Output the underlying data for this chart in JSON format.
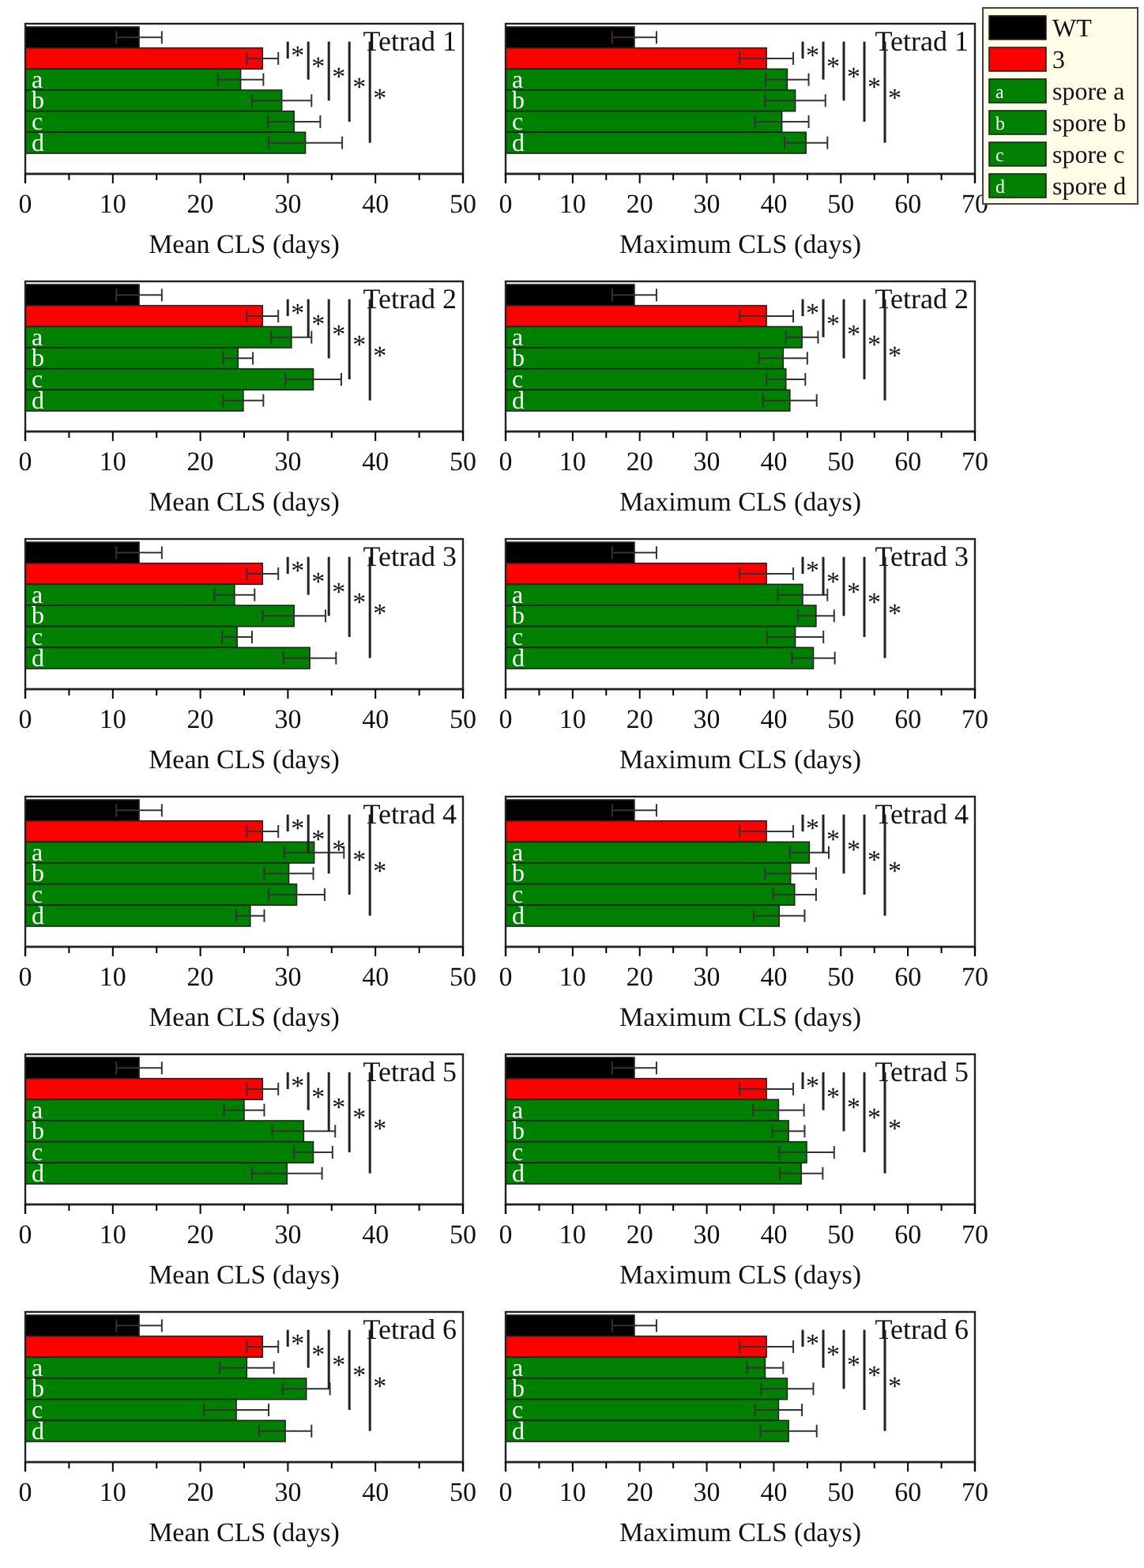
{
  "chart_data": [
    {
      "type": "bar",
      "orientation": "horizontal",
      "title": "Tetrad 1",
      "xlabel": "Mean CLS (days)",
      "categories": [
        null,
        null,
        "a",
        "b",
        "c",
        "d"
      ],
      "xlim": [
        0,
        50
      ],
      "xticks": [
        0,
        {
          "value": 5,
          "label": null
        },
        10,
        {
          "value": 15,
          "label": null
        },
        20,
        {
          "value": 25,
          "label": null
        },
        30,
        {
          "value": 35,
          "label": null
        },
        40,
        {
          "value": 45,
          "label": null
        },
        50
      ],
      "annotations": [
        "*",
        "*",
        "*",
        "*",
        "*"
      ],
      "series": [
        {
          "color": "#000000",
          "values": [
            13.0,
            null,
            null,
            null,
            null,
            null
          ],
          "errors": [
            2.6,
            null,
            null,
            null,
            null,
            null
          ]
        },
        {
          "color": "#ff0000",
          "values": [
            null,
            27.1,
            null,
            null,
            null,
            null
          ],
          "errors": [
            null,
            1.8,
            null,
            null,
            null,
            null
          ]
        },
        {
          "color": "#008000",
          "values": [
            null,
            null,
            24.6,
            null,
            null,
            null
          ],
          "errors": [
            null,
            null,
            2.6,
            null,
            null,
            null
          ]
        },
        {
          "color": "#008000",
          "values": [
            null,
            null,
            null,
            29.3,
            null,
            null
          ],
          "errors": [
            null,
            null,
            null,
            3.4,
            null,
            null
          ]
        },
        {
          "color": "#008000",
          "values": [
            null,
            null,
            null,
            null,
            30.7,
            null
          ],
          "errors": [
            null,
            null,
            null,
            null,
            3.0,
            null
          ]
        },
        {
          "color": "#008000",
          "values": [
            null,
            null,
            null,
            null,
            null,
            32.0
          ],
          "errors": [
            null,
            null,
            null,
            null,
            null,
            4.2
          ]
        }
      ]
    },
    {
      "type": "bar",
      "orientation": "horizontal",
      "title": "Tetrad 1",
      "xlabel": "Maximum CLS (days)",
      "categories": [
        null,
        null,
        "a",
        "b",
        "c",
        "d"
      ],
      "xlim": [
        0,
        70
      ],
      "xticks": [
        0,
        {
          "value": 5,
          "label": null
        },
        10,
        {
          "value": 15,
          "label": null
        },
        20,
        {
          "value": 25,
          "label": null
        },
        30,
        {
          "value": 35,
          "label": null
        },
        40,
        {
          "value": 45,
          "label": null
        },
        50,
        {
          "value": 55,
          "label": null
        },
        60,
        {
          "value": 65,
          "label": null
        },
        70
      ],
      "annotations": [
        "*",
        "*",
        "*",
        "*",
        "*"
      ],
      "legend": "right",
      "series": [
        {
          "name": "WT",
          "color": "#000000",
          "values": [
            19.2,
            null,
            null,
            null,
            null,
            null
          ],
          "errors": [
            3.3,
            null,
            null,
            null,
            null,
            null
          ]
        },
        {
          "name": "3",
          "color": "#ff0000",
          "values": [
            null,
            38.9,
            null,
            null,
            null,
            null
          ],
          "errors": [
            null,
            4.0,
            null,
            null,
            null,
            null
          ]
        },
        {
          "name": "spore a",
          "color": "#008000",
          "values": [
            null,
            null,
            42.0,
            null,
            null,
            null
          ],
          "errors": [
            null,
            null,
            3.2,
            null,
            null,
            null
          ]
        },
        {
          "name": "spore b",
          "color": "#008000",
          "values": [
            null,
            null,
            null,
            43.2,
            null,
            null
          ],
          "errors": [
            null,
            null,
            null,
            4.5,
            null,
            null
          ]
        },
        {
          "name": "spore c",
          "color": "#008000",
          "values": [
            null,
            null,
            null,
            null,
            41.2,
            null
          ],
          "errors": [
            null,
            null,
            null,
            null,
            4.0,
            null
          ]
        },
        {
          "name": "spore d",
          "color": "#008000",
          "values": [
            null,
            null,
            null,
            null,
            null,
            44.8
          ],
          "errors": [
            null,
            null,
            null,
            null,
            null,
            3.2
          ]
        }
      ]
    },
    {
      "type": "bar",
      "orientation": "horizontal",
      "title": "Tetrad 2",
      "xlabel": "Mean CLS (days)",
      "categories": [
        null,
        null,
        "a",
        "b",
        "c",
        "d"
      ],
      "xlim": [
        0,
        50
      ],
      "xticks": [
        0,
        {
          "value": 5,
          "label": null
        },
        10,
        {
          "value": 15,
          "label": null
        },
        20,
        {
          "value": 25,
          "label": null
        },
        30,
        {
          "value": 35,
          "label": null
        },
        40,
        {
          "value": 45,
          "label": null
        },
        50
      ],
      "annotations": [
        "*",
        "*",
        "*",
        "*",
        "*"
      ],
      "series": [
        {
          "color": "#000000",
          "values": [
            13.0,
            null,
            null,
            null,
            null,
            null
          ],
          "errors": [
            2.6,
            null,
            null,
            null,
            null,
            null
          ]
        },
        {
          "color": "#ff0000",
          "values": [
            null,
            27.1,
            null,
            null,
            null,
            null
          ],
          "errors": [
            null,
            1.8,
            null,
            null,
            null,
            null
          ]
        },
        {
          "color": "#008000",
          "values": [
            null,
            null,
            30.4,
            null,
            null,
            null
          ],
          "errors": [
            null,
            null,
            2.3,
            null,
            null,
            null
          ]
        },
        {
          "color": "#008000",
          "values": [
            null,
            null,
            null,
            24.3,
            null,
            null
          ],
          "errors": [
            null,
            null,
            null,
            1.7,
            null,
            null
          ]
        },
        {
          "color": "#008000",
          "values": [
            null,
            null,
            null,
            null,
            32.9,
            null
          ],
          "errors": [
            null,
            null,
            null,
            null,
            3.2,
            null
          ]
        },
        {
          "color": "#008000",
          "values": [
            null,
            null,
            null,
            null,
            null,
            24.9
          ],
          "errors": [
            null,
            null,
            null,
            null,
            null,
            2.3
          ]
        }
      ]
    },
    {
      "type": "bar",
      "orientation": "horizontal",
      "title": "Tetrad 2",
      "xlabel": "Maximum CLS (days)",
      "categories": [
        null,
        null,
        "a",
        "b",
        "c",
        "d"
      ],
      "xlim": [
        0,
        70
      ],
      "xticks": [
        0,
        {
          "value": 5,
          "label": null
        },
        10,
        {
          "value": 15,
          "label": null
        },
        20,
        {
          "value": 25,
          "label": null
        },
        30,
        {
          "value": 35,
          "label": null
        },
        40,
        {
          "value": 45,
          "label": null
        },
        50,
        {
          "value": 55,
          "label": null
        },
        60,
        {
          "value": 65,
          "label": null
        },
        70
      ],
      "annotations": [
        "*",
        "*",
        "*",
        "*",
        "*"
      ],
      "series": [
        {
          "color": "#000000",
          "values": [
            19.2,
            null,
            null,
            null,
            null,
            null
          ],
          "errors": [
            3.3,
            null,
            null,
            null,
            null,
            null
          ]
        },
        {
          "color": "#ff0000",
          "values": [
            null,
            38.9,
            null,
            null,
            null,
            null
          ],
          "errors": [
            null,
            4.0,
            null,
            null,
            null,
            null
          ]
        },
        {
          "color": "#008000",
          "values": [
            null,
            null,
            44.2,
            null,
            null,
            null
          ],
          "errors": [
            null,
            null,
            2.4,
            null,
            null,
            null
          ]
        },
        {
          "color": "#008000",
          "values": [
            null,
            null,
            null,
            41.4,
            null,
            null
          ],
          "errors": [
            null,
            null,
            null,
            3.6,
            null,
            null
          ]
        },
        {
          "color": "#008000",
          "values": [
            null,
            null,
            null,
            null,
            41.8,
            null
          ],
          "errors": [
            null,
            null,
            null,
            null,
            2.9,
            null
          ]
        },
        {
          "color": "#008000",
          "values": [
            null,
            null,
            null,
            null,
            null,
            42.4
          ],
          "errors": [
            null,
            null,
            null,
            null,
            null,
            4.0
          ]
        }
      ]
    },
    {
      "type": "bar",
      "orientation": "horizontal",
      "title": "Tetrad 3",
      "xlabel": "Mean CLS (days)",
      "categories": [
        null,
        null,
        "a",
        "b",
        "c",
        "d"
      ],
      "xlim": [
        0,
        50
      ],
      "xticks": [
        0,
        {
          "value": 5,
          "label": null
        },
        10,
        {
          "value": 15,
          "label": null
        },
        20,
        {
          "value": 25,
          "label": null
        },
        30,
        {
          "value": 35,
          "label": null
        },
        40,
        {
          "value": 45,
          "label": null
        },
        50
      ],
      "annotations": [
        "*",
        "*",
        "*",
        "*",
        "*"
      ],
      "series": [
        {
          "color": "#000000",
          "values": [
            13.0,
            null,
            null,
            null,
            null,
            null
          ],
          "errors": [
            2.6,
            null,
            null,
            null,
            null,
            null
          ]
        },
        {
          "color": "#ff0000",
          "values": [
            null,
            27.1,
            null,
            null,
            null,
            null
          ],
          "errors": [
            null,
            1.8,
            null,
            null,
            null,
            null
          ]
        },
        {
          "color": "#008000",
          "values": [
            null,
            null,
            23.9,
            null,
            null,
            null
          ],
          "errors": [
            null,
            null,
            2.3,
            null,
            null,
            null
          ]
        },
        {
          "color": "#008000",
          "values": [
            null,
            null,
            null,
            30.7,
            null,
            null
          ],
          "errors": [
            null,
            null,
            null,
            3.6,
            null,
            null
          ]
        },
        {
          "color": "#008000",
          "values": [
            null,
            null,
            null,
            null,
            24.2,
            null
          ],
          "errors": [
            null,
            null,
            null,
            null,
            1.7,
            null
          ]
        },
        {
          "color": "#008000",
          "values": [
            null,
            null,
            null,
            null,
            null,
            32.5
          ],
          "errors": [
            null,
            null,
            null,
            null,
            null,
            3.0
          ]
        }
      ]
    },
    {
      "type": "bar",
      "orientation": "horizontal",
      "title": "Tetrad 3",
      "xlabel": "Maximum CLS (days)",
      "categories": [
        null,
        null,
        "a",
        "b",
        "c",
        "d"
      ],
      "xlim": [
        0,
        70
      ],
      "xticks": [
        0,
        {
          "value": 5,
          "label": null
        },
        10,
        {
          "value": 15,
          "label": null
        },
        20,
        {
          "value": 25,
          "label": null
        },
        30,
        {
          "value": 35,
          "label": null
        },
        40,
        {
          "value": 45,
          "label": null
        },
        50,
        {
          "value": 55,
          "label": null
        },
        60,
        {
          "value": 65,
          "label": null
        },
        70
      ],
      "annotations": [
        "*",
        "*",
        "*",
        "*",
        "*"
      ],
      "series": [
        {
          "color": "#000000",
          "values": [
            19.2,
            null,
            null,
            null,
            null,
            null
          ],
          "errors": [
            3.3,
            null,
            null,
            null,
            null,
            null
          ]
        },
        {
          "color": "#ff0000",
          "values": [
            null,
            38.9,
            null,
            null,
            null,
            null
          ],
          "errors": [
            null,
            4.0,
            null,
            null,
            null,
            null
          ]
        },
        {
          "color": "#008000",
          "values": [
            null,
            null,
            44.3,
            null,
            null,
            null
          ],
          "errors": [
            null,
            null,
            3.7,
            null,
            null,
            null
          ]
        },
        {
          "color": "#008000",
          "values": [
            null,
            null,
            null,
            46.3,
            null,
            null
          ],
          "errors": [
            null,
            null,
            null,
            2.7,
            null,
            null
          ]
        },
        {
          "color": "#008000",
          "values": [
            null,
            null,
            null,
            null,
            43.2,
            null
          ],
          "errors": [
            null,
            null,
            null,
            null,
            4.2,
            null
          ]
        },
        {
          "color": "#008000",
          "values": [
            null,
            null,
            null,
            null,
            null,
            45.9
          ],
          "errors": [
            null,
            null,
            null,
            null,
            null,
            3.2
          ]
        }
      ]
    },
    {
      "type": "bar",
      "orientation": "horizontal",
      "title": "Tetrad 4",
      "xlabel": "Mean CLS (days)",
      "categories": [
        null,
        null,
        "a",
        "b",
        "c",
        "d"
      ],
      "xlim": [
        0,
        50
      ],
      "xticks": [
        0,
        {
          "value": 5,
          "label": null
        },
        10,
        {
          "value": 15,
          "label": null
        },
        20,
        {
          "value": 25,
          "label": null
        },
        30,
        {
          "value": 35,
          "label": null
        },
        40,
        {
          "value": 45,
          "label": null
        },
        50
      ],
      "annotations": [
        "*",
        "*",
        "*",
        "*",
        "*"
      ],
      "series": [
        {
          "color": "#000000",
          "values": [
            13.0,
            null,
            null,
            null,
            null,
            null
          ],
          "errors": [
            2.6,
            null,
            null,
            null,
            null,
            null
          ]
        },
        {
          "color": "#ff0000",
          "values": [
            null,
            27.1,
            null,
            null,
            null,
            null
          ],
          "errors": [
            null,
            1.8,
            null,
            null,
            null,
            null
          ]
        },
        {
          "color": "#008000",
          "values": [
            null,
            null,
            33.0,
            null,
            null,
            null
          ],
          "errors": [
            null,
            null,
            3.4,
            null,
            null,
            null
          ]
        },
        {
          "color": "#008000",
          "values": [
            null,
            null,
            null,
            30.1,
            null,
            null
          ],
          "errors": [
            null,
            null,
            null,
            2.8,
            null,
            null
          ]
        },
        {
          "color": "#008000",
          "values": [
            null,
            null,
            null,
            null,
            31.0,
            null
          ],
          "errors": [
            null,
            null,
            null,
            null,
            3.2,
            null
          ]
        },
        {
          "color": "#008000",
          "values": [
            null,
            null,
            null,
            null,
            null,
            25.7
          ],
          "errors": [
            null,
            null,
            null,
            null,
            null,
            1.6
          ]
        }
      ]
    },
    {
      "type": "bar",
      "orientation": "horizontal",
      "title": "Tetrad 4",
      "xlabel": "Maximum CLS (days)",
      "categories": [
        null,
        null,
        "a",
        "b",
        "c",
        "d"
      ],
      "xlim": [
        0,
        70
      ],
      "xticks": [
        0,
        {
          "value": 5,
          "label": null
        },
        10,
        {
          "value": 15,
          "label": null
        },
        20,
        {
          "value": 25,
          "label": null
        },
        30,
        {
          "value": 35,
          "label": null
        },
        40,
        {
          "value": 45,
          "label": null
        },
        50,
        {
          "value": 55,
          "label": null
        },
        60,
        {
          "value": 65,
          "label": null
        },
        70
      ],
      "annotations": [
        "*",
        "*",
        "*",
        "*",
        "*"
      ],
      "series": [
        {
          "color": "#000000",
          "values": [
            19.2,
            null,
            null,
            null,
            null,
            null
          ],
          "errors": [
            3.3,
            null,
            null,
            null,
            null,
            null
          ]
        },
        {
          "color": "#ff0000",
          "values": [
            null,
            38.9,
            null,
            null,
            null,
            null
          ],
          "errors": [
            null,
            4.0,
            null,
            null,
            null,
            null
          ]
        },
        {
          "color": "#008000",
          "values": [
            null,
            null,
            45.3,
            null,
            null,
            null
          ],
          "errors": [
            null,
            null,
            2.9,
            null,
            null,
            null
          ]
        },
        {
          "color": "#008000",
          "values": [
            null,
            null,
            null,
            42.5,
            null,
            null
          ],
          "errors": [
            null,
            null,
            null,
            3.8,
            null,
            null
          ]
        },
        {
          "color": "#008000",
          "values": [
            null,
            null,
            null,
            null,
            43.1,
            null
          ],
          "errors": [
            null,
            null,
            null,
            null,
            3.2,
            null
          ]
        },
        {
          "color": "#008000",
          "values": [
            null,
            null,
            null,
            null,
            null,
            40.8
          ],
          "errors": [
            null,
            null,
            null,
            null,
            null,
            3.8
          ]
        }
      ]
    },
    {
      "type": "bar",
      "orientation": "horizontal",
      "title": "Tetrad 5",
      "xlabel": "Mean CLS (days)",
      "categories": [
        null,
        null,
        "a",
        "b",
        "c",
        "d"
      ],
      "xlim": [
        0,
        50
      ],
      "xticks": [
        0,
        {
          "value": 5,
          "label": null
        },
        10,
        {
          "value": 15,
          "label": null
        },
        20,
        {
          "value": 25,
          "label": null
        },
        30,
        {
          "value": 35,
          "label": null
        },
        40,
        {
          "value": 45,
          "label": null
        },
        50
      ],
      "annotations": [
        "*",
        "*",
        "*",
        "*",
        "*"
      ],
      "series": [
        {
          "color": "#000000",
          "values": [
            13.0,
            null,
            null,
            null,
            null,
            null
          ],
          "errors": [
            2.6,
            null,
            null,
            null,
            null,
            null
          ]
        },
        {
          "color": "#ff0000",
          "values": [
            null,
            27.1,
            null,
            null,
            null,
            null
          ],
          "errors": [
            null,
            1.8,
            null,
            null,
            null,
            null
          ]
        },
        {
          "color": "#008000",
          "values": [
            null,
            null,
            25.0,
            null,
            null,
            null
          ],
          "errors": [
            null,
            null,
            2.3,
            null,
            null,
            null
          ]
        },
        {
          "color": "#008000",
          "values": [
            null,
            null,
            null,
            31.8,
            null,
            null
          ],
          "errors": [
            null,
            null,
            null,
            3.6,
            null,
            null
          ]
        },
        {
          "color": "#008000",
          "values": [
            null,
            null,
            null,
            null,
            32.9,
            null
          ],
          "errors": [
            null,
            null,
            null,
            null,
            2.2,
            null
          ]
        },
        {
          "color": "#008000",
          "values": [
            null,
            null,
            null,
            null,
            null,
            29.9
          ],
          "errors": [
            null,
            null,
            null,
            null,
            null,
            4.0
          ]
        }
      ]
    },
    {
      "type": "bar",
      "orientation": "horizontal",
      "title": "Tetrad 5",
      "xlabel": "Maximum CLS (days)",
      "categories": [
        null,
        null,
        "a",
        "b",
        "c",
        "d"
      ],
      "xlim": [
        0,
        70
      ],
      "xticks": [
        0,
        {
          "value": 5,
          "label": null
        },
        10,
        {
          "value": 15,
          "label": null
        },
        20,
        {
          "value": 25,
          "label": null
        },
        30,
        {
          "value": 35,
          "label": null
        },
        40,
        {
          "value": 45,
          "label": null
        },
        50,
        {
          "value": 55,
          "label": null
        },
        60,
        {
          "value": 65,
          "label": null
        },
        70
      ],
      "annotations": [
        "*",
        "*",
        "*",
        "*",
        "*"
      ],
      "series": [
        {
          "color": "#000000",
          "values": [
            19.2,
            null,
            null,
            null,
            null,
            null
          ],
          "errors": [
            3.3,
            null,
            null,
            null,
            null,
            null
          ]
        },
        {
          "color": "#ff0000",
          "values": [
            null,
            38.9,
            null,
            null,
            null,
            null
          ],
          "errors": [
            null,
            4.0,
            null,
            null,
            null,
            null
          ]
        },
        {
          "color": "#008000",
          "values": [
            null,
            null,
            40.7,
            null,
            null,
            null
          ],
          "errors": [
            null,
            null,
            3.8,
            null,
            null,
            null
          ]
        },
        {
          "color": "#008000",
          "values": [
            null,
            null,
            null,
            42.2,
            null,
            null
          ],
          "errors": [
            null,
            null,
            null,
            2.4,
            null,
            null
          ]
        },
        {
          "color": "#008000",
          "values": [
            null,
            null,
            null,
            null,
            44.9,
            null
          ],
          "errors": [
            null,
            null,
            null,
            null,
            4.1,
            null
          ]
        },
        {
          "color": "#008000",
          "values": [
            null,
            null,
            null,
            null,
            null,
            44.1
          ],
          "errors": [
            null,
            null,
            null,
            null,
            null,
            3.2
          ]
        }
      ]
    },
    {
      "type": "bar",
      "orientation": "horizontal",
      "title": "Tetrad 6",
      "xlabel": "Mean CLS (days)",
      "categories": [
        null,
        null,
        "a",
        "b",
        "c",
        "d"
      ],
      "xlim": [
        0,
        50
      ],
      "xticks": [
        0,
        {
          "value": 5,
          "label": null
        },
        10,
        {
          "value": 15,
          "label": null
        },
        20,
        {
          "value": 25,
          "label": null
        },
        30,
        {
          "value": 35,
          "label": null
        },
        40,
        {
          "value": 45,
          "label": null
        },
        50
      ],
      "annotations": [
        "*",
        "*",
        "*",
        "*",
        "*"
      ],
      "series": [
        {
          "color": "#000000",
          "values": [
            13.0,
            null,
            null,
            null,
            null,
            null
          ],
          "errors": [
            2.6,
            null,
            null,
            null,
            null,
            null
          ]
        },
        {
          "color": "#ff0000",
          "values": [
            null,
            27.1,
            null,
            null,
            null,
            null
          ],
          "errors": [
            null,
            1.8,
            null,
            null,
            null,
            null
          ]
        },
        {
          "color": "#008000",
          "values": [
            null,
            null,
            25.3,
            null,
            null,
            null
          ],
          "errors": [
            null,
            null,
            3.1,
            null,
            null,
            null
          ]
        },
        {
          "color": "#008000",
          "values": [
            null,
            null,
            null,
            32.1,
            null,
            null
          ],
          "errors": [
            null,
            null,
            null,
            2.7,
            null,
            null
          ]
        },
        {
          "color": "#008000",
          "values": [
            null,
            null,
            null,
            null,
            24.1,
            null
          ],
          "errors": [
            null,
            null,
            null,
            null,
            3.7,
            null
          ]
        },
        {
          "color": "#008000",
          "values": [
            null,
            null,
            null,
            null,
            null,
            29.7
          ],
          "errors": [
            null,
            null,
            null,
            null,
            null,
            3.0
          ]
        }
      ]
    },
    {
      "type": "bar",
      "orientation": "horizontal",
      "title": "Tetrad 6",
      "xlabel": "Maximum CLS (days)",
      "categories": [
        null,
        null,
        "a",
        "b",
        "c",
        "d"
      ],
      "xlim": [
        0,
        70
      ],
      "xticks": [
        0,
        {
          "value": 5,
          "label": null
        },
        10,
        {
          "value": 15,
          "label": null
        },
        20,
        {
          "value": 25,
          "label": null
        },
        30,
        {
          "value": 35,
          "label": null
        },
        40,
        {
          "value": 45,
          "label": null
        },
        50,
        {
          "value": 55,
          "label": null
        },
        60,
        {
          "value": 65,
          "label": null
        },
        70
      ],
      "annotations": [
        "*",
        "*",
        "*",
        "*",
        "*"
      ],
      "series": [
        {
          "color": "#000000",
          "values": [
            19.2,
            null,
            null,
            null,
            null,
            null
          ],
          "errors": [
            3.3,
            null,
            null,
            null,
            null,
            null
          ]
        },
        {
          "color": "#ff0000",
          "values": [
            null,
            38.9,
            null,
            null,
            null,
            null
          ],
          "errors": [
            null,
            4.0,
            null,
            null,
            null,
            null
          ]
        },
        {
          "color": "#008000",
          "values": [
            null,
            null,
            38.7,
            null,
            null,
            null
          ],
          "errors": [
            null,
            null,
            2.7,
            null,
            null,
            null
          ]
        },
        {
          "color": "#008000",
          "values": [
            null,
            null,
            null,
            42.0,
            null,
            null
          ],
          "errors": [
            null,
            null,
            null,
            3.9,
            null,
            null
          ]
        },
        {
          "color": "#008000",
          "values": [
            null,
            null,
            null,
            null,
            40.7,
            null
          ],
          "errors": [
            null,
            null,
            null,
            null,
            3.5,
            null
          ]
        },
        {
          "color": "#008000",
          "values": [
            null,
            null,
            null,
            null,
            null,
            42.2
          ],
          "errors": [
            null,
            null,
            null,
            null,
            null,
            4.2
          ]
        }
      ]
    }
  ]
}
